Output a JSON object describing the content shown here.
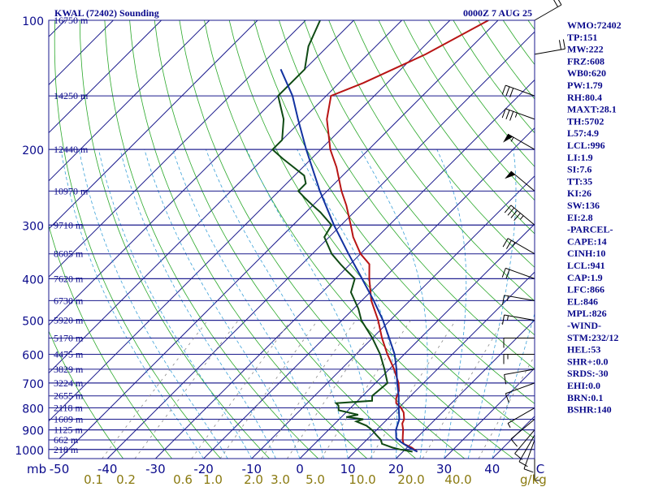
{
  "header": {
    "station": "KWAL (72402) Sounding",
    "time": "0000Z  7 AUG 25"
  },
  "colors": {
    "temperature": "#b81414",
    "dewpoint": "#0f4a14",
    "parcel": "#1232a0",
    "isobar": "#1a1a8c",
    "isotherm": "#1a1a8c",
    "dry_adiabat": "#2aa82a",
    "moist_adiabat": "#3aa0d8",
    "mixing_ratio": "#888888",
    "text": "#0a0a8c"
  },
  "chart_data": {
    "type": "line",
    "diagram": "skew-T log-P",
    "yaxis": {
      "unit": "mb",
      "scale": "log",
      "range": [
        1000,
        100
      ],
      "ticks": [
        100,
        200,
        300,
        400,
        500,
        600,
        700,
        800,
        900,
        1000
      ]
    },
    "xaxis": {
      "unit": "C",
      "ticks": [
        -50,
        -40,
        -30,
        -20,
        -10,
        0,
        10,
        20,
        30,
        40,
        "C"
      ]
    },
    "mixing_ratio_axis": {
      "unit": "g/kg",
      "ticks": [
        "0.1",
        "0.2",
        "0.6",
        "1.0",
        "2.0",
        "3.0",
        "5.0",
        "10.0",
        "20.0",
        "40.0"
      ]
    },
    "height_labels": [
      {
        "p": 100,
        "label": "16750 m"
      },
      {
        "p": 150,
        "label": "14250 m"
      },
      {
        "p": 200,
        "label": "12440 m"
      },
      {
        "p": 250,
        "label": "10970 m"
      },
      {
        "p": 300,
        "label": "9710 m"
      },
      {
        "p": 350,
        "label": "8605 m"
      },
      {
        "p": 400,
        "label": "7620 m"
      },
      {
        "p": 450,
        "label": "6730 m"
      },
      {
        "p": 500,
        "label": "5920 m"
      },
      {
        "p": 550,
        "label": "5170 m"
      },
      {
        "p": 600,
        "label": "4475 m"
      },
      {
        "p": 650,
        "label": "3829 m"
      },
      {
        "p": 700,
        "label": "3224 m"
      },
      {
        "p": 750,
        "label": "2655 m"
      },
      {
        "p": 800,
        "label": "2118 m"
      },
      {
        "p": 850,
        "label": "1609 m"
      },
      {
        "p": 900,
        "label": "1125 m"
      },
      {
        "p": 950,
        "label": "662 m"
      },
      {
        "p": 1000,
        "label": "218 m"
      }
    ],
    "series": [
      {
        "key": "temperature",
        "points": [
          [
            1012,
            23
          ],
          [
            990,
            21
          ],
          [
            970,
            18.5
          ],
          [
            950,
            17.5
          ],
          [
            925,
            16.5
          ],
          [
            900,
            15.5
          ],
          [
            870,
            14
          ],
          [
            850,
            13.5
          ],
          [
            820,
            12
          ],
          [
            800,
            10.5
          ],
          [
            780,
            8.5
          ],
          [
            760,
            7.5
          ],
          [
            730,
            6.5
          ],
          [
            700,
            4.8
          ],
          [
            650,
            1
          ],
          [
            600,
            -3.5
          ],
          [
            550,
            -8
          ],
          [
            500,
            -12.5
          ],
          [
            450,
            -18
          ],
          [
            400,
            -23
          ],
          [
            370,
            -26
          ],
          [
            350,
            -30
          ],
          [
            320,
            -35
          ],
          [
            300,
            -38
          ],
          [
            270,
            -43
          ],
          [
            250,
            -47
          ],
          [
            220,
            -53
          ],
          [
            200,
            -58
          ],
          [
            170,
            -65
          ],
          [
            150,
            -69
          ],
          [
            140,
            -65
          ],
          [
            120,
            -58
          ],
          [
            100,
            -52
          ]
        ]
      },
      {
        "key": "dewpoint",
        "points": [
          [
            1012,
            22
          ],
          [
            1000,
            19
          ],
          [
            990,
            17
          ],
          [
            970,
            14
          ],
          [
            950,
            13
          ],
          [
            925,
            11
          ],
          [
            900,
            9
          ],
          [
            880,
            7
          ],
          [
            860,
            4
          ],
          [
            850,
            5
          ],
          [
            840,
            1
          ],
          [
            830,
            3
          ],
          [
            810,
            -2
          ],
          [
            790,
            -3
          ],
          [
            780,
            -4
          ],
          [
            770,
            3
          ],
          [
            750,
            2
          ],
          [
            700,
            2.5
          ],
          [
            650,
            -1
          ],
          [
            600,
            -5
          ],
          [
            550,
            -10
          ],
          [
            500,
            -16
          ],
          [
            470,
            -19
          ],
          [
            430,
            -24
          ],
          [
            400,
            -26
          ],
          [
            380,
            -30
          ],
          [
            370,
            -32
          ],
          [
            350,
            -36
          ],
          [
            320,
            -41
          ],
          [
            300,
            -42
          ],
          [
            280,
            -47
          ],
          [
            270,
            -50
          ],
          [
            260,
            -53
          ],
          [
            250,
            -56
          ],
          [
            240,
            -56
          ],
          [
            230,
            -58
          ],
          [
            210,
            -66
          ],
          [
            200,
            -70
          ],
          [
            190,
            -70
          ],
          [
            170,
            -74
          ],
          [
            150,
            -80
          ],
          [
            130,
            -80
          ],
          [
            115,
            -84
          ],
          [
            100,
            -87
          ]
        ]
      },
      {
        "key": "parcel",
        "points": [
          [
            1012,
            23
          ],
          [
            990,
            20.5
          ],
          [
            960,
            17.5
          ],
          [
            941,
            15.8
          ],
          [
            900,
            14
          ],
          [
            850,
            12.5
          ],
          [
            800,
            10
          ],
          [
            750,
            7.5
          ],
          [
            700,
            4.5
          ],
          [
            650,
            1.5
          ],
          [
            600,
            -2
          ],
          [
            550,
            -6.5
          ],
          [
            500,
            -11.5
          ],
          [
            450,
            -17.5
          ],
          [
            400,
            -24.5
          ],
          [
            350,
            -32.5
          ],
          [
            300,
            -41.5
          ],
          [
            250,
            -51.5
          ],
          [
            200,
            -63
          ],
          [
            170,
            -71
          ],
          [
            150,
            -77
          ],
          [
            130,
            -85
          ]
        ]
      }
    ]
  },
  "wind_barbs": [
    {
      "p": 1000,
      "dir": 180,
      "spd": 5
    },
    {
      "p": 950,
      "dir": 200,
      "spd": 10
    },
    {
      "p": 925,
      "dir": 210,
      "spd": 10
    },
    {
      "p": 900,
      "dir": 220,
      "spd": 10
    },
    {
      "p": 850,
      "dir": 230,
      "spd": 10
    },
    {
      "p": 800,
      "dir": 240,
      "spd": 5
    },
    {
      "p": 700,
      "dir": 250,
      "spd": 10
    },
    {
      "p": 650,
      "dir": 260,
      "spd": 10
    },
    {
      "p": 600,
      "dir": 270,
      "spd": 15
    },
    {
      "p": 550,
      "dir": 270,
      "spd": 10
    },
    {
      "p": 500,
      "dir": 280,
      "spd": 15
    },
    {
      "p": 450,
      "dir": 280,
      "spd": 15
    },
    {
      "p": 400,
      "dir": 290,
      "spd": 20
    },
    {
      "p": 350,
      "dir": 300,
      "spd": 25
    },
    {
      "p": 300,
      "dir": 310,
      "spd": 45
    },
    {
      "p": 250,
      "dir": 310,
      "spd": 50
    },
    {
      "p": 200,
      "dir": 300,
      "spd": 55
    },
    {
      "p": 170,
      "dir": 290,
      "spd": 35
    },
    {
      "p": 150,
      "dir": 290,
      "spd": 30
    },
    {
      "p": 120,
      "dir": 80,
      "spd": 20
    },
    {
      "p": 100,
      "dir": 60,
      "spd": 20
    }
  ],
  "indices": [
    "WMO:72402",
    "TP:151",
    "MW:222",
    "FRZ:608",
    "WB0:620",
    "PW:1.79",
    "RH:80.4",
    "MAXT:28.1",
    "TH:5702",
    "L57:4.9",
    "LCL:996",
    "LI:1.9",
    "SI:7.6",
    "TT:35",
    "KI:26",
    "SW:136",
    "EI:2.8",
    "-PARCEL-",
    "CAPE:14",
    "CINH:10",
    "LCL:941",
    "CAP:1.9",
    "LFC:866",
    "EL:846",
    "MPL:826",
    "-WIND-",
    "STM:232/12",
    "HEL:53",
    "SHR+:0.0",
    "SRDS:-30",
    "EHI:0.0",
    "BRN:0.1",
    "BSHR:140"
  ],
  "gkg_label": "g/kg",
  "mb_label": "mb"
}
